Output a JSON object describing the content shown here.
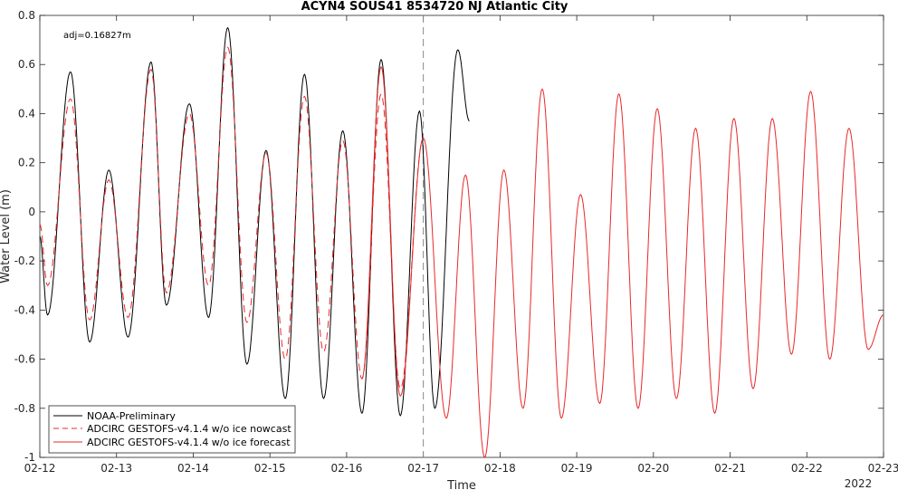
{
  "chart_data": {
    "type": "line",
    "title": "ACYN4 SOUS41 8534720 NJ Atlantic City",
    "xlabel": "Time",
    "ylabel": "Water Level (m)",
    "xlim_days": [
      12,
      23
    ],
    "ylim": [
      -1,
      0.8
    ],
    "x_ticks": [
      "02-12",
      "02-13",
      "02-14",
      "02-15",
      "02-16",
      "02-17",
      "02-18",
      "02-19",
      "02-20",
      "02-21",
      "02-22",
      "02-23"
    ],
    "x_year_label": "2022",
    "y_ticks": [
      -1,
      -0.8,
      -0.6,
      -0.4,
      -0.2,
      0,
      0.2,
      0.4,
      0.6,
      0.8
    ],
    "y_tick_labels": [
      "-1",
      "-0.8",
      "-0.6",
      "-0.4",
      "-0.2",
      "0",
      "0.2",
      "0.4",
      "0.6",
      "0.8"
    ],
    "nowcast_end_day": 17.0,
    "annotation": "adj=0.16827m",
    "legend_position": "bottom-left",
    "grid": false,
    "series": [
      {
        "name": "NOAA-Preliminary",
        "color": "#000000",
        "style": "solid",
        "x": [
          12.0,
          12.1,
          12.4,
          12.65,
          12.9,
          13.15,
          13.45,
          13.65,
          13.95,
          14.2,
          14.45,
          14.7,
          14.95,
          15.2,
          15.45,
          15.7,
          15.95,
          16.2,
          16.45,
          16.7,
          16.95,
          17.15,
          17.45,
          17.6
        ],
        "y": [
          -0.1,
          -0.42,
          0.57,
          -0.53,
          0.17,
          -0.51,
          0.61,
          -0.38,
          0.44,
          -0.43,
          0.75,
          -0.62,
          0.25,
          -0.76,
          0.56,
          -0.76,
          0.33,
          -0.82,
          0.62,
          -0.83,
          0.41,
          -0.8,
          0.66,
          0.37
        ]
      },
      {
        "name": "ADCIRC GESTOFS-v4.1.4 w/o ice nowcast",
        "color": "#e8282a",
        "style": "dashed",
        "x": [
          12.0,
          12.1,
          12.4,
          12.65,
          12.9,
          13.15,
          13.45,
          13.65,
          13.95,
          14.2,
          14.45,
          14.7,
          14.95,
          15.2,
          15.45,
          15.7,
          15.95,
          16.2,
          16.45,
          16.7,
          17.0
        ],
        "y": [
          -0.05,
          -0.3,
          0.46,
          -0.44,
          0.13,
          -0.43,
          0.58,
          -0.33,
          0.4,
          -0.3,
          0.67,
          -0.45,
          0.24,
          -0.6,
          0.47,
          -0.57,
          0.29,
          -0.68,
          0.48,
          -0.72,
          0.3
        ]
      },
      {
        "name": "ADCIRC GESTOFS-v4.1.4 w/o ice forecast",
        "color": "#e8282a",
        "style": "solid",
        "x": [
          16.2,
          16.45,
          16.7,
          17.0,
          17.3,
          17.55,
          17.8,
          18.05,
          18.3,
          18.55,
          18.8,
          19.05,
          19.3,
          19.55,
          19.8,
          20.05,
          20.3,
          20.55,
          20.8,
          21.05,
          21.3,
          21.55,
          21.8,
          22.05,
          22.3,
          22.55,
          22.8,
          23.0
        ],
        "y": [
          -0.68,
          0.59,
          -0.75,
          0.3,
          -0.84,
          0.15,
          -1.0,
          0.17,
          -0.8,
          0.5,
          -0.84,
          0.07,
          -0.78,
          0.48,
          -0.8,
          0.42,
          -0.76,
          0.34,
          -0.82,
          0.38,
          -0.72,
          0.38,
          -0.58,
          0.49,
          -0.6,
          0.34,
          -0.56,
          -0.42
        ]
      }
    ]
  }
}
